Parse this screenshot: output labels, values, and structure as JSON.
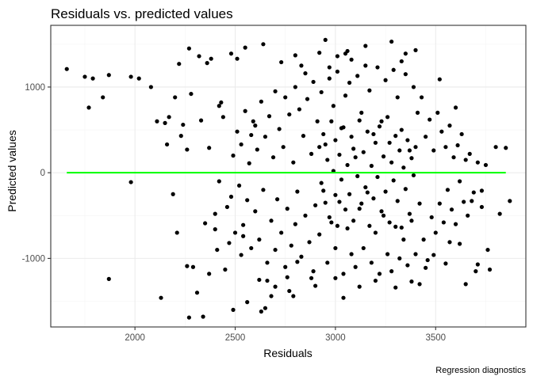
{
  "chart_data": {
    "type": "scatter",
    "title": "Residuals vs. predicted values",
    "xlabel": "Residuals",
    "ylabel": "Predicted values",
    "caption": "Regression diagnostics",
    "xlim": [
      1580,
      3950
    ],
    "ylim": [
      -1800,
      1720
    ],
    "x_ticks": [
      2000,
      2500,
      3000,
      3500
    ],
    "y_ticks": [
      -1000,
      0,
      1000
    ],
    "grid": true,
    "point_color": "#000000",
    "reference_line": {
      "y": 0,
      "x_from": 1660,
      "x_to": 3850,
      "color": "#00ff00"
    },
    "series": [
      {
        "points": [
          [
            1660,
            1210
          ],
          [
            1750,
            1120
          ],
          [
            1770,
            760
          ],
          [
            1790,
            1100
          ],
          [
            1840,
            880
          ],
          [
            1870,
            1140
          ],
          [
            1870,
            -1240
          ],
          [
            1980,
            1120
          ],
          [
            1980,
            -110
          ],
          [
            2020,
            1100
          ],
          [
            2080,
            1000
          ],
          [
            2110,
            600
          ],
          [
            2130,
            -1460
          ],
          [
            2150,
            580
          ],
          [
            2160,
            330
          ],
          [
            2170,
            650
          ],
          [
            2190,
            -250
          ],
          [
            2200,
            880
          ],
          [
            2210,
            -700
          ],
          [
            2220,
            1270
          ],
          [
            2230,
            430
          ],
          [
            2240,
            560
          ],
          [
            2260,
            270
          ],
          [
            2260,
            -1090
          ],
          [
            2270,
            1450
          ],
          [
            2270,
            -1690
          ],
          [
            2280,
            920
          ],
          [
            2290,
            -1100
          ],
          [
            2310,
            -1400
          ],
          [
            2320,
            1360
          ],
          [
            2340,
            -1680
          ],
          [
            2350,
            -590
          ],
          [
            2360,
            1280
          ],
          [
            2370,
            -1180
          ],
          [
            2380,
            1330
          ],
          [
            2400,
            -660
          ],
          [
            2410,
            -900
          ],
          [
            2420,
            780
          ],
          [
            2430,
            820
          ],
          [
            2450,
            -1130
          ],
          [
            2470,
            -820
          ],
          [
            2480,
            1390
          ],
          [
            2490,
            -1600
          ],
          [
            2510,
            1330
          ],
          [
            2530,
            -960
          ],
          [
            2540,
            -740
          ],
          [
            2550,
            1460
          ],
          [
            2560,
            -1510
          ],
          [
            2580,
            440
          ],
          [
            2600,
            550
          ],
          [
            2620,
            -1250
          ],
          [
            2630,
            -1620
          ],
          [
            2640,
            1500
          ],
          [
            2650,
            -1580
          ],
          [
            2660,
            -1260
          ],
          [
            2680,
            -1440
          ],
          [
            2700,
            -1330
          ],
          [
            2730,
            1290
          ],
          [
            2760,
            -1220
          ],
          [
            2770,
            -1380
          ],
          [
            2790,
            -1440
          ],
          [
            2800,
            1370
          ],
          [
            2810,
            -1040
          ],
          [
            2830,
            1250
          ],
          [
            2850,
            1160
          ],
          [
            2880,
            -1230
          ],
          [
            2900,
            -1320
          ],
          [
            2920,
            1400
          ],
          [
            2950,
            1550
          ],
          [
            2970,
            1230
          ],
          [
            3000,
            -1230
          ],
          [
            3010,
            1360
          ],
          [
            3040,
            -1460
          ],
          [
            3050,
            1390
          ],
          [
            3060,
            1420
          ],
          [
            3080,
            1320
          ],
          [
            3120,
            -1330
          ],
          [
            3150,
            1480
          ],
          [
            3200,
            -1260
          ],
          [
            3280,
            1530
          ],
          [
            3300,
            -1340
          ],
          [
            3330,
            1300
          ],
          [
            3350,
            1390
          ],
          [
            3380,
            -1270
          ],
          [
            3400,
            1430
          ],
          [
            3420,
            -1300
          ],
          [
            3450,
            -1110
          ],
          [
            3490,
            -960
          ],
          [
            3520,
            1090
          ],
          [
            3550,
            -1060
          ],
          [
            3570,
            -810
          ],
          [
            3600,
            760
          ],
          [
            3620,
            -830
          ],
          [
            3650,
            -1300
          ],
          [
            3680,
            -330
          ],
          [
            3700,
            -1150
          ],
          [
            3710,
            -1070
          ],
          [
            3730,
            -210
          ],
          [
            3760,
            -900
          ],
          [
            3770,
            -1130
          ],
          [
            3800,
            300
          ],
          [
            3820,
            -480
          ],
          [
            3850,
            290
          ],
          [
            3870,
            -330
          ],
          [
            2330,
            610
          ],
          [
            2370,
            290
          ],
          [
            2400,
            -480
          ],
          [
            2420,
            -100
          ],
          [
            2440,
            650
          ],
          [
            2460,
            -400
          ],
          [
            2480,
            -280
          ],
          [
            2490,
            200
          ],
          [
            2500,
            -700
          ],
          [
            2510,
            480
          ],
          [
            2520,
            -150
          ],
          [
            2530,
            330
          ],
          [
            2540,
            -610
          ],
          [
            2550,
            720
          ],
          [
            2560,
            -320
          ],
          [
            2570,
            110
          ],
          [
            2580,
            -880
          ],
          [
            2590,
            600
          ],
          [
            2600,
            -450
          ],
          [
            2610,
            270
          ],
          [
            2620,
            -780
          ],
          [
            2630,
            830
          ],
          [
            2640,
            -200
          ],
          [
            2650,
            420
          ],
          [
            2660,
            -1050
          ],
          [
            2670,
            660
          ],
          [
            2680,
            -560
          ],
          [
            2690,
            180
          ],
          [
            2700,
            -900
          ],
          [
            2700,
            950
          ],
          [
            2710,
            -310
          ],
          [
            2720,
            510
          ],
          [
            2730,
            -700
          ],
          [
            2740,
            300
          ],
          [
            2750,
            -1100
          ],
          [
            2750,
            880
          ],
          [
            2760,
            -420
          ],
          [
            2770,
            680
          ],
          [
            2780,
            -850
          ],
          [
            2790,
            120
          ],
          [
            2800,
            -600
          ],
          [
            2800,
            1000
          ],
          [
            2810,
            -220
          ],
          [
            2820,
            740
          ],
          [
            2830,
            -980
          ],
          [
            2840,
            430
          ],
          [
            2850,
            -500
          ],
          [
            2860,
            860
          ],
          [
            2870,
            -810
          ],
          [
            2880,
            220
          ],
          [
            2890,
            -1150
          ],
          [
            2890,
            1060
          ],
          [
            2900,
            -380
          ],
          [
            2910,
            600
          ],
          [
            2920,
            -720
          ],
          [
            2930,
            940
          ],
          [
            2940,
            -210
          ],
          [
            2950,
            330
          ],
          [
            2960,
            -1050
          ],
          [
            2970,
            1100
          ],
          [
            2980,
            -580
          ],
          [
            2990,
            780
          ],
          [
            3000,
            -880
          ],
          [
            3010,
            1180
          ],
          [
            3020,
            -340
          ],
          [
            3030,
            520
          ],
          [
            3040,
            -1180
          ],
          [
            3050,
            900
          ],
          [
            3060,
            -650
          ],
          [
            3070,
            1050
          ],
          [
            3080,
            -950
          ],
          [
            3090,
            280
          ],
          [
            3100,
            -1100
          ],
          [
            3110,
            1130
          ],
          [
            3120,
            -420
          ],
          [
            3130,
            700
          ],
          [
            3140,
            -880
          ],
          [
            3150,
            1250
          ],
          [
            3160,
            -230
          ],
          [
            3170,
            960
          ],
          [
            3180,
            -1050
          ],
          [
            3190,
            450
          ],
          [
            3200,
            -700
          ],
          [
            3210,
            1230
          ],
          [
            3220,
            -1180
          ],
          [
            3230,
            600
          ],
          [
            3240,
            -500
          ],
          [
            3250,
            1080
          ],
          [
            3260,
            -950
          ],
          [
            3270,
            350
          ],
          [
            3280,
            -1150
          ],
          [
            3290,
            1200
          ],
          [
            3300,
            -630
          ],
          [
            3310,
            880
          ],
          [
            3320,
            -1000
          ],
          [
            3330,
            500
          ],
          [
            3340,
            -780
          ],
          [
            3350,
            1150
          ],
          [
            3360,
            -1080
          ],
          [
            3370,
            260
          ],
          [
            3380,
            -560
          ],
          [
            3390,
            1000
          ],
          [
            3400,
            -950
          ],
          [
            3410,
            700
          ],
          [
            3420,
            -360
          ],
          [
            3430,
            880
          ],
          [
            3440,
            -780
          ],
          [
            3450,
            420
          ],
          [
            3460,
            -1020
          ],
          [
            3470,
            620
          ],
          [
            3480,
            -520
          ],
          [
            3490,
            260
          ],
          [
            3500,
            -700
          ],
          [
            3510,
            700
          ],
          [
            3520,
            -360
          ],
          [
            3530,
            480
          ],
          [
            3540,
            -580
          ],
          [
            3550,
            300
          ],
          [
            3560,
            -200
          ],
          [
            3570,
            550
          ],
          [
            3580,
            -430
          ],
          [
            3590,
            180
          ],
          [
            3600,
            -600
          ],
          [
            3610,
            320
          ],
          [
            3620,
            -100
          ],
          [
            3630,
            450
          ],
          [
            3640,
            -340
          ],
          [
            3650,
            150
          ],
          [
            3660,
            -500
          ],
          [
            3670,
            220
          ],
          [
            3690,
            -230
          ],
          [
            3710,
            120
          ],
          [
            3730,
            -400
          ],
          [
            3750,
            90
          ],
          [
            2920,
            300
          ],
          [
            2930,
            -120
          ],
          [
            2940,
            450
          ],
          [
            2950,
            -350
          ],
          [
            2960,
            150
          ],
          [
            2970,
            -520
          ],
          [
            2980,
            600
          ],
          [
            2990,
            20
          ],
          [
            3000,
            -260
          ],
          [
            3000,
            380
          ],
          [
            3010,
            -620
          ],
          [
            3020,
            210
          ],
          [
            3030,
            -80
          ],
          [
            3040,
            530
          ],
          [
            3050,
            -430
          ],
          [
            3060,
            90
          ],
          [
            3070,
            -250
          ],
          [
            3080,
            420
          ],
          [
            3090,
            -560
          ],
          [
            3100,
            180
          ],
          [
            3110,
            -40
          ],
          [
            3120,
            610
          ],
          [
            3130,
            -360
          ],
          [
            3140,
            240
          ],
          [
            3150,
            -170
          ],
          [
            3160,
            480
          ],
          [
            3170,
            -620
          ],
          [
            3180,
            80
          ],
          [
            3190,
            -300
          ],
          [
            3200,
            350
          ],
          [
            3210,
            -50
          ],
          [
            3220,
            540
          ],
          [
            3230,
            -450
          ],
          [
            3240,
            190
          ],
          [
            3250,
            -220
          ],
          [
            3260,
            650
          ],
          [
            3270,
            -580
          ],
          [
            3280,
            120
          ],
          [
            3290,
            -90
          ],
          [
            3300,
            430
          ],
          [
            3310,
            -330
          ],
          [
            3320,
            260
          ],
          [
            3330,
            -640
          ],
          [
            3340,
            60
          ],
          [
            3350,
            -190
          ],
          [
            3360,
            380
          ],
          [
            3370,
            -480
          ],
          [
            3380,
            170
          ],
          [
            3390,
            -30
          ],
          [
            3400,
            300
          ]
        ]
      }
    ]
  }
}
